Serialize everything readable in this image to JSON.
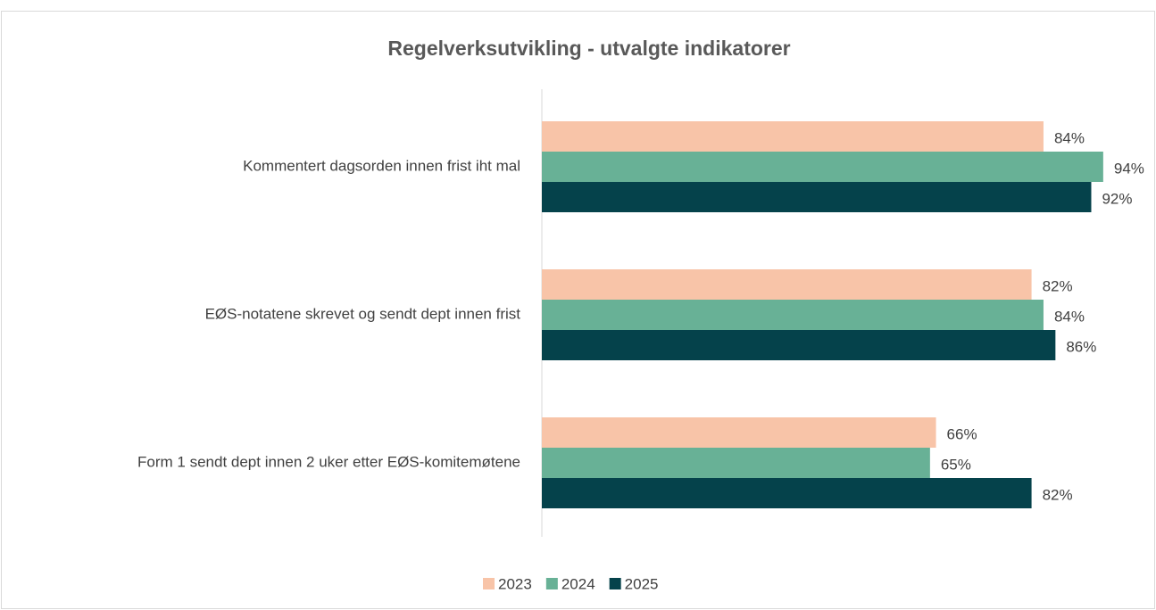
{
  "chart_data": {
    "type": "bar",
    "orientation": "horizontal",
    "title": "Regelverksutvikling - utvalgte indikatorer",
    "categories": [
      "Kommentert dagsorden innen frist iht mal",
      "EØS-notatene skrevet og sendt dept innen frist",
      "Form 1 sendt dept innen 2 uker etter EØS-komitemøtene"
    ],
    "series": [
      {
        "name": "2023",
        "color": "#f8c4a8",
        "values": [
          84,
          82,
          66
        ],
        "value_labels": [
          "84%",
          "82%",
          "66%"
        ]
      },
      {
        "name": "2024",
        "color": "#68b196",
        "values": [
          94,
          84,
          65
        ],
        "value_labels": [
          "94%",
          "84%",
          "65%"
        ]
      },
      {
        "name": "2025",
        "color": "#05424b",
        "values": [
          92,
          86,
          82
        ],
        "value_labels": [
          "92%",
          "86%",
          "82%"
        ]
      }
    ],
    "xlim": [
      0,
      100
    ],
    "legend": "bottom"
  }
}
